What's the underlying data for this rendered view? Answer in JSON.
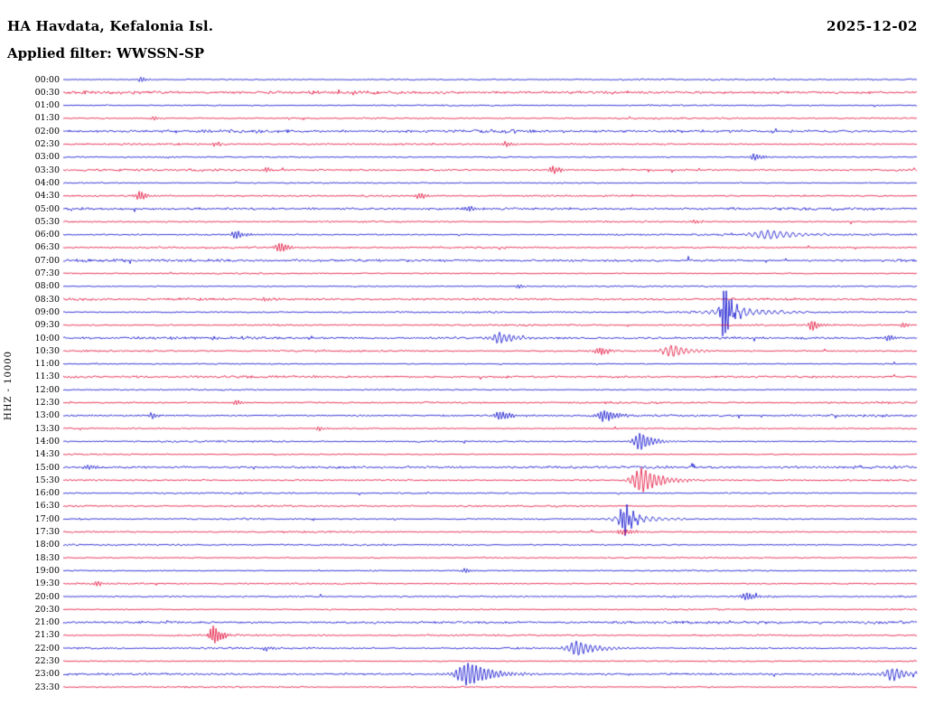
{
  "header": {
    "title": "HA Havdata, Kefalonia Isl.",
    "date": "2025-12-02",
    "filter_label": "Applied filter: WWSSN-SP"
  },
  "chart_data": {
    "type": "line",
    "subtype": "helicorder_day_plot",
    "title": "HA Havdata, Kefalonia Isl.",
    "date": "2025-12-02",
    "filter": "WWSSN-SP",
    "y_axis_label": "HHZ - 10000",
    "minutes_per_row": 30,
    "legend": "none",
    "grid": false,
    "row_labels": [
      "00:00",
      "00:30",
      "01:00",
      "01:30",
      "02:00",
      "02:30",
      "03:00",
      "03:30",
      "04:00",
      "04:30",
      "05:00",
      "05:30",
      "06:00",
      "06:30",
      "07:00",
      "07:30",
      "08:00",
      "08:30",
      "09:00",
      "09:30",
      "10:00",
      "10:30",
      "11:00",
      "11:30",
      "12:00",
      "12:30",
      "13:00",
      "13:30",
      "14:00",
      "14:30",
      "15:00",
      "15:30",
      "16:00",
      "16:30",
      "17:00",
      "17:30",
      "18:00",
      "18:30",
      "19:00",
      "19:30",
      "20:00",
      "20:30",
      "21:00",
      "21:30",
      "22:00",
      "22:30",
      "23:00",
      "23:30"
    ],
    "colors": {
      "even_trace": "#0000cc",
      "odd_trace": "#e10030",
      "text": "#000000",
      "background": "#ffffff"
    },
    "row_noise": [
      0.8,
      1.6,
      0.7,
      0.8,
      1.6,
      1.0,
      0.8,
      1.2,
      0.7,
      0.9,
      1.6,
      0.8,
      1.0,
      0.9,
      1.6,
      0.8,
      0.7,
      1.5,
      1.0,
      0.9,
      1.5,
      1.0,
      0.7,
      1.4,
      0.7,
      1.0,
      1.2,
      0.8,
      0.9,
      0.7,
      1.4,
      1.0,
      0.8,
      0.9,
      0.9,
      0.8,
      1.0,
      0.8,
      0.8,
      0.9,
      0.9,
      0.8,
      1.5,
      0.9,
      1.0,
      0.8,
      1.4,
      0.8
    ],
    "events": [
      {
        "time": "00:00",
        "row": 0,
        "x": 0.092,
        "amp": 3,
        "w": 3
      },
      {
        "time": "01:30",
        "row": 3,
        "x": 0.106,
        "amp": 2.5,
        "w": 3
      },
      {
        "time": "02:30",
        "row": 5,
        "x": 0.18,
        "amp": 2.5,
        "w": 3
      },
      {
        "time": "02:30",
        "row": 5,
        "x": 0.519,
        "amp": 3,
        "w": 4
      },
      {
        "time": "03:00",
        "row": 6,
        "x": 0.81,
        "amp": 4,
        "w": 4
      },
      {
        "time": "03:30",
        "row": 7,
        "x": 0.238,
        "amp": 2.5,
        "w": 3
      },
      {
        "time": "03:30",
        "row": 7,
        "x": 0.575,
        "amp": 4.5,
        "w": 4
      },
      {
        "time": "04:30",
        "row": 9,
        "x": 0.09,
        "amp": 5,
        "w": 4
      },
      {
        "time": "04:30",
        "row": 9,
        "x": 0.418,
        "amp": 3.5,
        "w": 4
      },
      {
        "time": "05:00",
        "row": 10,
        "x": 0.476,
        "amp": 3,
        "w": 4
      },
      {
        "time": "05:30",
        "row": 11,
        "x": 0.74,
        "amp": 2.5,
        "w": 3
      },
      {
        "time": "06:00",
        "row": 12,
        "x": 0.203,
        "amp": 5,
        "w": 4
      },
      {
        "time": "06:00",
        "row": 12,
        "x": 0.828,
        "amp": 5,
        "w": 14,
        "f": 0.9
      },
      {
        "time": "06:30",
        "row": 13,
        "x": 0.254,
        "amp": 6,
        "w": 4
      },
      {
        "time": "08:00",
        "row": 16,
        "x": 0.534,
        "amp": 2.5,
        "w": 3
      },
      {
        "time": "08:30",
        "row": 17,
        "x": 0.236,
        "amp": 2.5,
        "w": 3
      },
      {
        "time": "09:00",
        "row": 18,
        "x": 0.775,
        "amp": 34,
        "w": 3,
        "f": 2.2
      },
      {
        "time": "09:00",
        "row": 18,
        "x": 0.785,
        "amp": 6,
        "w": 16,
        "f": 0.9
      },
      {
        "time": "09:30",
        "row": 19,
        "x": 0.878,
        "amp": 6,
        "w": 4
      },
      {
        "time": "09:30",
        "row": 19,
        "x": 0.985,
        "amp": 3,
        "w": 3
      },
      {
        "time": "10:00",
        "row": 20,
        "x": 0.513,
        "amp": 6,
        "w": 8,
        "f": 1.2
      },
      {
        "time": "10:00",
        "row": 20,
        "x": 0.968,
        "amp": 3,
        "w": 4
      },
      {
        "time": "10:30",
        "row": 21,
        "x": 0.63,
        "amp": 4,
        "w": 6
      },
      {
        "time": "10:30",
        "row": 21,
        "x": 0.714,
        "amp": 7,
        "w": 8,
        "f": 1.1
      },
      {
        "time": "12:30",
        "row": 25,
        "x": 0.203,
        "amp": 3,
        "w": 3
      },
      {
        "time": "13:00",
        "row": 26,
        "x": 0.104,
        "amp": 3.5,
        "w": 3
      },
      {
        "time": "13:00",
        "row": 26,
        "x": 0.513,
        "amp": 5,
        "w": 6
      },
      {
        "time": "13:00",
        "row": 26,
        "x": 0.635,
        "amp": 7,
        "w": 6
      },
      {
        "time": "13:30",
        "row": 27,
        "x": 0.3,
        "amp": 2.5,
        "w": 3
      },
      {
        "time": "14:00",
        "row": 28,
        "x": 0.677,
        "amp": 10,
        "w": 6,
        "f": 1.5
      },
      {
        "time": "15:00",
        "row": 30,
        "x": 0.03,
        "amp": 3,
        "w": 4
      },
      {
        "time": "15:30",
        "row": 31,
        "x": 0.679,
        "amp": 14,
        "w": 9,
        "f": 1.3
      },
      {
        "time": "17:00",
        "row": 34,
        "x": 0.658,
        "amp": 17,
        "w": 4,
        "f": 1.8
      },
      {
        "time": "17:00",
        "row": 34,
        "x": 0.664,
        "amp": 5,
        "w": 14,
        "f": 0.9
      },
      {
        "time": "17:30",
        "row": 35,
        "x": 0.658,
        "amp": 3,
        "w": 8
      },
      {
        "time": "19:00",
        "row": 38,
        "x": 0.471,
        "amp": 3,
        "w": 3
      },
      {
        "time": "19:30",
        "row": 39,
        "x": 0.039,
        "amp": 3,
        "w": 3
      },
      {
        "time": "20:00",
        "row": 40,
        "x": 0.802,
        "amp": 4.5,
        "w": 5
      },
      {
        "time": "21:30",
        "row": 43,
        "x": 0.177,
        "amp": 11,
        "w": 4,
        "f": 2.0
      },
      {
        "time": "22:00",
        "row": 44,
        "x": 0.238,
        "amp": 2.5,
        "w": 3
      },
      {
        "time": "22:00",
        "row": 44,
        "x": 0.603,
        "amp": 8,
        "w": 9,
        "f": 1.2
      },
      {
        "time": "23:00",
        "row": 46,
        "x": 0.476,
        "amp": 13,
        "w": 11,
        "f": 1.4
      },
      {
        "time": "23:00",
        "row": 46,
        "x": 0.973,
        "amp": 7,
        "w": 8,
        "f": 1.2
      }
    ]
  }
}
